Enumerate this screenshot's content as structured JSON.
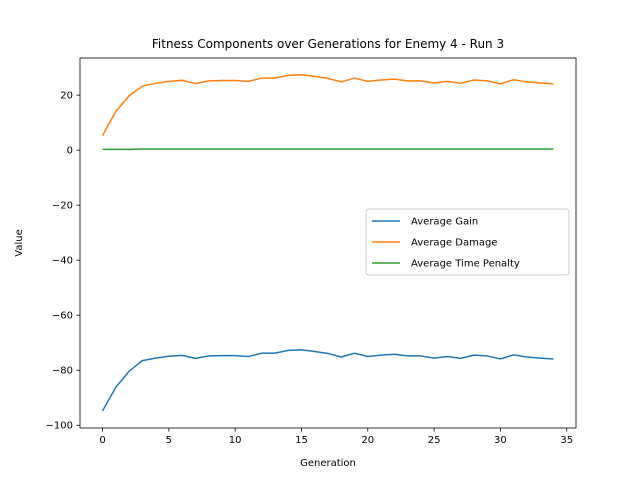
{
  "chart_data": {
    "type": "line",
    "title": "Fitness Components over Generations for Enemy 4 - Run 3",
    "xlabel": "Generation",
    "ylabel": "Value",
    "xlim": [
      -1.7,
      35.7
    ],
    "ylim": [
      -101,
      33.5
    ],
    "xticks": [
      0,
      5,
      10,
      15,
      20,
      25,
      30,
      35
    ],
    "yticks": [
      -100,
      -80,
      -60,
      -40,
      -20,
      0,
      20
    ],
    "legend_position": "center-right",
    "grid": false,
    "x": [
      0,
      1,
      2,
      3,
      4,
      5,
      6,
      7,
      8,
      9,
      10,
      11,
      12,
      13,
      14,
      15,
      16,
      17,
      18,
      19,
      20,
      21,
      22,
      23,
      24,
      25,
      26,
      27,
      28,
      29,
      30,
      31,
      32,
      33,
      34
    ],
    "series": [
      {
        "name": "Average Gain",
        "color": "#1f77b4",
        "values": [
          -94.8,
          -86.2,
          -80.4,
          -76.5,
          -75.6,
          -74.9,
          -74.6,
          -75.7,
          -74.8,
          -74.7,
          -74.7,
          -75.0,
          -73.8,
          -73.8,
          -72.8,
          -72.6,
          -73.2,
          -73.9,
          -75.2,
          -73.8,
          -75.0,
          -74.5,
          -74.2,
          -74.8,
          -74.8,
          -75.6,
          -75.0,
          -75.7,
          -74.5,
          -74.8,
          -75.9,
          -74.4,
          -75.2,
          -75.6,
          -75.9
        ]
      },
      {
        "name": "Average Damage",
        "color": "#ff7f0e",
        "values": [
          5.3,
          14.1,
          19.7,
          23.3,
          24.3,
          25.0,
          25.4,
          24.2,
          25.2,
          25.3,
          25.3,
          25.0,
          26.2,
          26.2,
          27.2,
          27.4,
          26.8,
          26.1,
          24.8,
          26.2,
          25.0,
          25.5,
          25.8,
          25.2,
          25.2,
          24.4,
          25.0,
          24.3,
          25.5,
          25.2,
          24.1,
          25.6,
          24.8,
          24.4,
          24.1
        ]
      },
      {
        "name": "Average Time Penalty",
        "color": "#2ca02c",
        "values": [
          0.3,
          0.3,
          0.3,
          0.4,
          0.4,
          0.4,
          0.4,
          0.4,
          0.4,
          0.4,
          0.4,
          0.4,
          0.4,
          0.4,
          0.4,
          0.4,
          0.4,
          0.4,
          0.4,
          0.4,
          0.4,
          0.4,
          0.4,
          0.4,
          0.4,
          0.4,
          0.4,
          0.4,
          0.4,
          0.4,
          0.4,
          0.4,
          0.4,
          0.4,
          0.4
        ]
      }
    ]
  }
}
